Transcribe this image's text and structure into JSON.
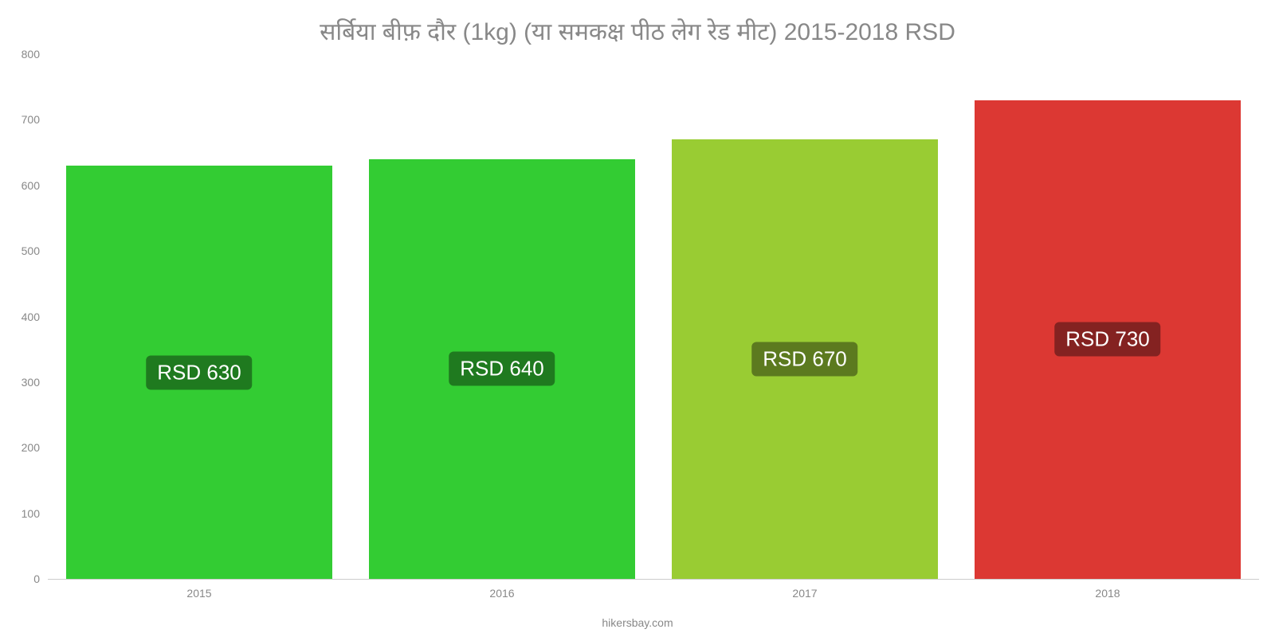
{
  "chart": {
    "type": "bar",
    "title": "सर्बिया   बीफ़   दौर   (1kg) (या   समकक्ष   पीठ   लेग   रेड   मीट) 2015-2018 RSD",
    "title_color": "#888888",
    "title_fontsize": 30,
    "background_color": "#ffffff",
    "grid_color": "#cccccc",
    "axis_label_color": "#888888",
    "axis_fontsize": 14,
    "ylim": [
      0,
      800
    ],
    "ytick_step": 100,
    "yticks": [
      0,
      100,
      200,
      300,
      400,
      500,
      600,
      700,
      800
    ],
    "bar_width": 0.88,
    "categories": [
      "2015",
      "2016",
      "2017",
      "2018"
    ],
    "values": [
      630,
      640,
      670,
      730
    ],
    "bar_colors": [
      "#33cc33",
      "#33cc33",
      "#99cc33",
      "#dc3833"
    ],
    "value_labels": [
      "RSD 630",
      "RSD 640",
      "RSD 670",
      "RSD 730"
    ],
    "value_label_bg": [
      "#1f7a1f",
      "#1f7a1f",
      "#5c7a1f",
      "#842221"
    ],
    "value_label_color": "#ffffff",
    "value_label_fontsize": 26,
    "footer": "hikersbay.com",
    "footer_color": "#888888",
    "footer_fontsize": 14
  }
}
